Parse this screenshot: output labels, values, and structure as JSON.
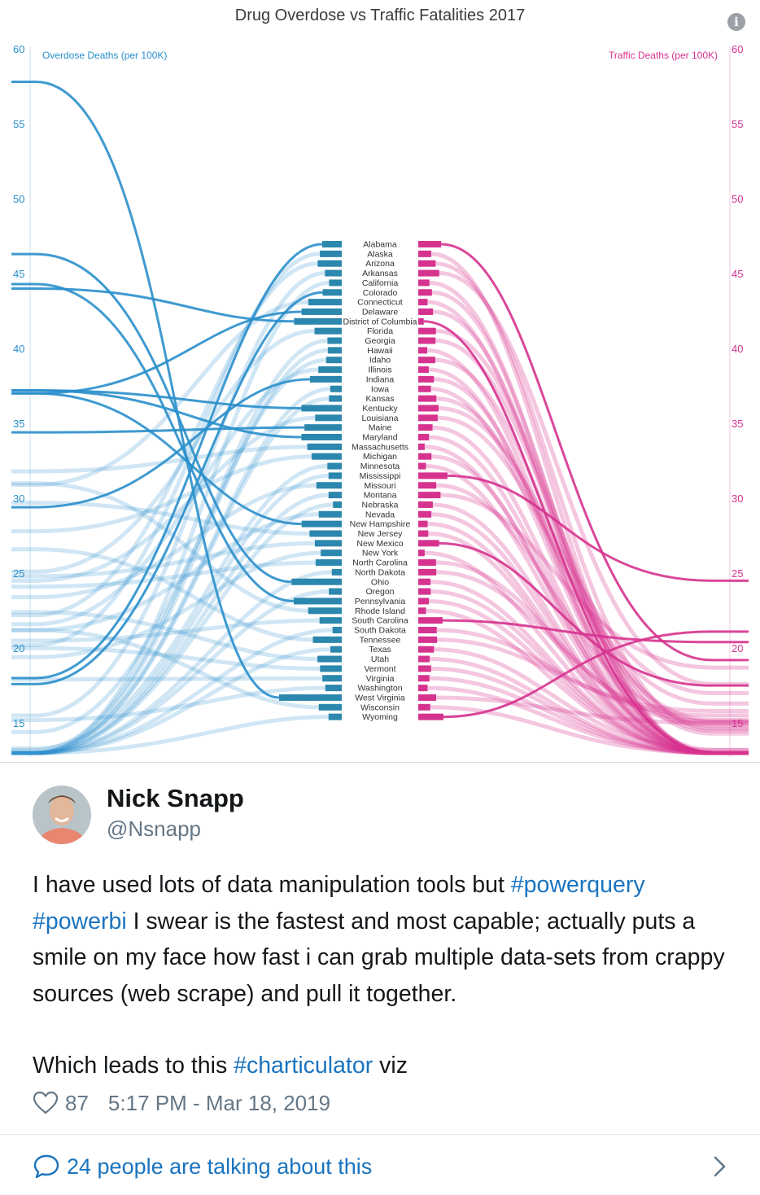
{
  "chart_data": {
    "type": "slope",
    "title": "Drug Overdose vs Traffic Fatalities 2017",
    "left_axis": {
      "label": "Overdose Deaths (per 100K)",
      "ticks": [
        60,
        55,
        50,
        45,
        40,
        35,
        30,
        25,
        20,
        15
      ],
      "range": [
        13,
        60
      ],
      "color": "#2a8fcb"
    },
    "right_axis": {
      "label": "Traffic Deaths (per 100K)",
      "ticks": [
        60,
        55,
        50,
        45,
        40,
        35,
        30,
        25,
        20,
        15
      ],
      "range": [
        13,
        60
      ],
      "color": "#d6338f"
    },
    "states": [
      "Alabama",
      "Alaska",
      "Arizona",
      "Arkansas",
      "California",
      "Colorado",
      "Connecticut",
      "Delaware",
      "District of Columbia",
      "Florida",
      "Georgia",
      "Hawaii",
      "Idaho",
      "Illinois",
      "Indiana",
      "Iowa",
      "Kansas",
      "Kentucky",
      "Louisiana",
      "Maine",
      "Maryland",
      "Massachusetts",
      "Michigan",
      "Minnesota",
      "Mississippi",
      "Missouri",
      "Montana",
      "Nebraska",
      "Nevada",
      "New Hampshire",
      "New Jersey",
      "New Mexico",
      "New York",
      "North Carolina",
      "North Dakota",
      "Ohio",
      "Oregon",
      "Pennsylvania",
      "Rhode Island",
      "South Carolina",
      "South Dakota",
      "Tennessee",
      "Texas",
      "Utah",
      "Vermont",
      "Virginia",
      "Washington",
      "West Virginia",
      "Wisconsin",
      "Wyoming"
    ],
    "overdose": [
      18.0,
      20.2,
      22.2,
      15.5,
      11.7,
      17.6,
      30.9,
      37.0,
      44.0,
      25.1,
      13.2,
      12.9,
      14.4,
      21.6,
      29.4,
      10.6,
      11.8,
      37.2,
      24.5,
      34.4,
      37.2,
      31.8,
      27.8,
      13.3,
      12.2,
      23.4,
      12.2,
      8.1,
      21.2,
      37.0,
      29.7,
      24.8,
      19.4,
      24.1,
      9.2,
      46.3,
      11.9,
      44.3,
      31.0,
      20.5,
      8.5,
      26.6,
      10.5,
      22.4,
      20.0,
      17.9,
      15.2,
      57.8,
      21.2,
      12.2
    ],
    "traffic": [
      19.2,
      10.9,
      14.6,
      17.6,
      9.4,
      11.5,
      7.8,
      12.4,
      4.6,
      14.8,
      14.5,
      7.5,
      14.3,
      8.8,
      13.2,
      10.6,
      15.2,
      17.0,
      16.3,
      12.0,
      9.0,
      5.4,
      11.1,
      6.5,
      24.5,
      15.1,
      18.7,
      12.2,
      11.0,
      7.9,
      8.4,
      17.5,
      5.4,
      14.9,
      15.1,
      10.3,
      10.5,
      8.9,
      6.5,
      20.4,
      15.5,
      15.8,
      13.2,
      9.6,
      10.8,
      9.4,
      7.8,
      15.0,
      10.1,
      21.1
    ]
  },
  "tweet": {
    "author_name": "Nick Snapp",
    "author_handle": "@Nsnapp",
    "text_1": "I have used lots of data manipulation tools but ",
    "hashtag_1": "#powerquery",
    "text_2": " ",
    "hashtag_2": "#powerbi",
    "text_3": " I swear is the fastest and most capable; actually puts a smile on my face how fast i can grab multiple data-sets from crappy sources (web scrape) and pull it together.",
    "text_4": "Which leads to this ",
    "hashtag_3": "#charticulator",
    "text_5": " viz",
    "like_count": "87",
    "timestamp": "5:17 PM - Mar 18, 2019",
    "conversation_label": "24 people are talking about this"
  },
  "icons": {
    "info": "info-icon",
    "like": "heart-icon",
    "reply": "speech-bubble-icon",
    "more": "chevron-right-icon"
  },
  "colors": {
    "overdose": "#2a8fcb",
    "traffic": "#d6338f",
    "link": "#1b74bf",
    "muted": "#657786"
  }
}
